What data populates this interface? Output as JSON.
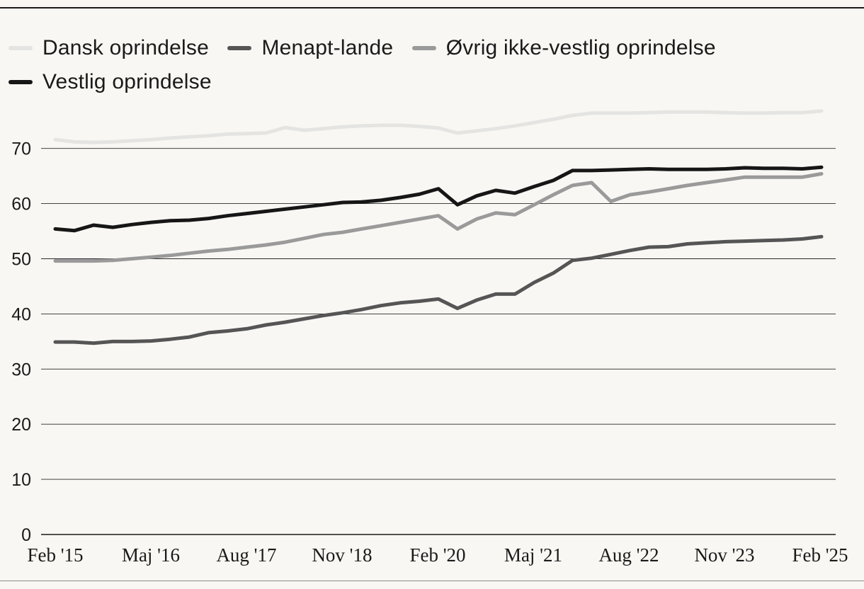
{
  "chart_data": {
    "type": "line",
    "title": "",
    "xlabel": "",
    "ylabel": "",
    "ylim": [
      0,
      80
    ],
    "yticks": [
      0,
      10,
      20,
      30,
      40,
      50,
      60,
      70
    ],
    "x_tick_labels": [
      "Feb '15",
      "Maj '16",
      "Aug '17",
      "Nov '18",
      "Feb '20",
      "Maj '21",
      "Aug '22",
      "Nov '23",
      "Feb '25"
    ],
    "n_points": 41,
    "legend_position": "top-left",
    "series": [
      {
        "name": "Dansk oprindelse",
        "color": "#e4e4e2",
        "values": [
          71.6,
          71.2,
          71.1,
          71.2,
          71.4,
          71.6,
          71.9,
          72.1,
          72.3,
          72.6,
          72.7,
          72.8,
          73.8,
          73.3,
          73.6,
          73.9,
          74.1,
          74.2,
          74.2,
          74.0,
          73.7,
          72.8,
          73.2,
          73.6,
          74.1,
          74.7,
          75.3,
          76.0,
          76.4,
          76.4,
          76.4,
          76.5,
          76.6,
          76.6,
          76.6,
          76.5,
          76.4,
          76.4,
          76.5,
          76.5,
          76.8
        ]
      },
      {
        "name": "Menapt-lande",
        "color": "#555555",
        "values": [
          34.9,
          34.9,
          34.7,
          35.0,
          35.0,
          35.1,
          35.4,
          35.8,
          36.6,
          36.9,
          37.3,
          38.0,
          38.5,
          39.1,
          39.7,
          40.2,
          40.8,
          41.5,
          42.0,
          42.3,
          42.7,
          41.0,
          42.5,
          43.6,
          43.6,
          45.7,
          47.4,
          49.7,
          50.1,
          50.8,
          51.5,
          52.1,
          52.2,
          52.7,
          52.9,
          53.1,
          53.2,
          53.3,
          53.4,
          53.6,
          54.0
        ]
      },
      {
        "name": "Øvrig ikke-vestlig oprindelse",
        "color": "#9a9a9a",
        "values": [
          49.6,
          49.6,
          49.6,
          49.7,
          50.0,
          50.3,
          50.6,
          51.0,
          51.4,
          51.7,
          52.1,
          52.5,
          53.0,
          53.7,
          54.4,
          54.8,
          55.4,
          56.0,
          56.6,
          57.2,
          57.8,
          55.4,
          57.2,
          58.3,
          58.0,
          59.8,
          61.6,
          63.3,
          63.8,
          60.4,
          61.6,
          62.1,
          62.7,
          63.3,
          63.8,
          64.3,
          64.8,
          64.8,
          64.8,
          64.8,
          65.4
        ]
      },
      {
        "name": "Vestlig oprindelse",
        "color": "#161616",
        "values": [
          55.4,
          55.1,
          56.1,
          55.7,
          56.2,
          56.6,
          56.9,
          57.0,
          57.3,
          57.8,
          58.2,
          58.6,
          59.0,
          59.4,
          59.8,
          60.2,
          60.3,
          60.6,
          61.1,
          61.7,
          62.7,
          59.8,
          61.4,
          62.4,
          61.9,
          63.1,
          64.2,
          66.0,
          66.0,
          66.1,
          66.2,
          66.3,
          66.2,
          66.2,
          66.2,
          66.3,
          66.5,
          66.4,
          66.4,
          66.3,
          66.6
        ]
      }
    ]
  }
}
